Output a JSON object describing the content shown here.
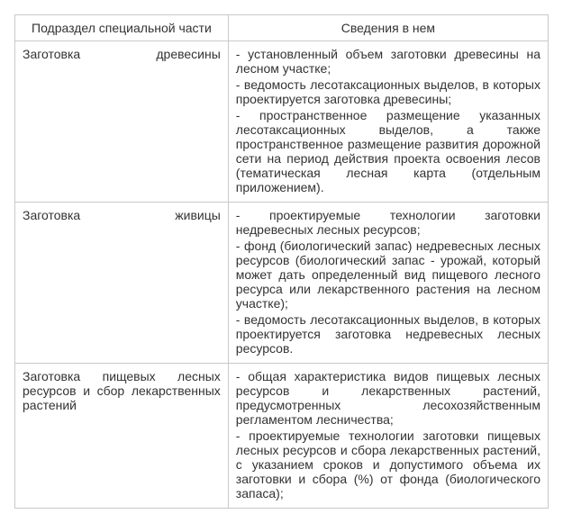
{
  "colors": {
    "border": "#c9c9c9",
    "text": "#333333",
    "background": "#ffffff"
  },
  "typography": {
    "font_family": "Arial",
    "font_size_pt": 11
  },
  "table": {
    "columns": [
      {
        "header": "Подраздел специальной части",
        "width_pct": 40
      },
      {
        "header": "Сведения в нем",
        "width_pct": 60
      }
    ],
    "rows": [
      {
        "left": "Заготовка древесины",
        "right": [
          "- установленный объем заготовки древесины на лесном участке;",
          "- ведомость лесотаксационных выделов, в которых проектируется заготовка древесины;",
          "- пространственное размещение указанных лесотаксационных выделов, а также пространственное размещение развития дорожной сети на период действия проекта освоения лесов (тематическая лесная карта (отдельным приложением)."
        ]
      },
      {
        "left": "Заготовка живицы",
        "right": [
          "- проектируемые технологии заготовки недревесных лесных ресурсов;",
          "- фонд (биологический запас) недревесных лесных ресурсов (биологический запас - урожай, который может дать определенный вид пищевого лесного ресурса или лекарственного растения на лесном участке);",
          "- ведомость лесотаксационных выделов, в которых проектируется заготовка недревесных лесных ресурсов."
        ]
      },
      {
        "left": "Заготовка пищевых лесных ресурсов и сбор лекарственных растений",
        "right": [
          "- общая характеристика видов пищевых лесных ресурсов и лекарственных растений, предусмотренных лесохозяйственным регламентом лесничества;",
          "- проектируемые технологии заготовки пищевых лесных ресурсов и сбора лекарственных растений, с указанием сроков и допустимого объема их заготовки и сбора (%) от фонда (биологического запаса);"
        ]
      }
    ]
  }
}
